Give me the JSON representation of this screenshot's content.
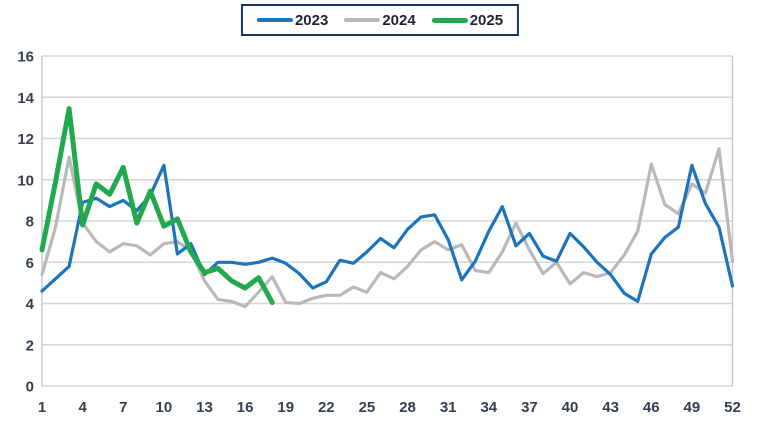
{
  "chart": {
    "legend_items": [
      {
        "label": "2023"
      },
      {
        "label": "2024"
      },
      {
        "label": "2025"
      }
    ]
  },
  "chart_data": {
    "type": "line",
    "title": "",
    "xlabel": "",
    "ylabel": "",
    "x_unit": "week",
    "x_range": [
      1,
      52
    ],
    "ylim": [
      0,
      16
    ],
    "y_ticks": [
      0,
      2,
      4,
      6,
      8,
      10,
      12,
      14,
      16
    ],
    "x_ticks": [
      1,
      4,
      7,
      10,
      13,
      16,
      19,
      22,
      25,
      28,
      31,
      34,
      37,
      40,
      43,
      46,
      49,
      52
    ],
    "grid": "horizontal",
    "legend_position": "top-center",
    "colors": {
      "grid": "#d6d6d6",
      "plot_border": "#c7c7c7",
      "tick_text": "#33404f",
      "legend_border": "#17365d"
    },
    "series": [
      {
        "name": "2023",
        "color": "#1b74bc",
        "line_width": 3.2,
        "start_week": 1,
        "values": [
          4.6,
          5.2,
          5.8,
          8.9,
          9.1,
          8.7,
          9.0,
          8.5,
          9.25,
          10.7,
          6.4,
          6.9,
          5.4,
          6.0,
          6.0,
          5.9,
          6.0,
          6.2,
          5.95,
          5.45,
          4.75,
          5.05,
          6.1,
          5.95,
          6.5,
          7.15,
          6.7,
          7.6,
          8.2,
          8.3,
          7.1,
          5.15,
          6.05,
          7.5,
          8.7,
          6.8,
          7.4,
          6.3,
          6.05,
          7.4,
          6.75,
          6.0,
          5.4,
          4.5,
          4.1,
          6.4,
          7.2,
          7.7,
          10.7,
          8.85,
          7.7,
          4.85
        ]
      },
      {
        "name": "2024",
        "color": "#b9b9b9",
        "line_width": 3.2,
        "start_week": 1,
        "values": [
          5.4,
          7.7,
          11.1,
          7.9,
          7.0,
          6.5,
          6.9,
          6.8,
          6.35,
          6.9,
          7.0,
          6.55,
          5.1,
          4.2,
          4.1,
          3.85,
          4.55,
          5.3,
          4.05,
          4.0,
          4.25,
          4.4,
          4.4,
          4.8,
          4.55,
          5.5,
          5.2,
          5.8,
          6.6,
          7.0,
          6.6,
          6.85,
          5.6,
          5.5,
          6.5,
          7.9,
          6.6,
          5.45,
          6.0,
          4.95,
          5.5,
          5.3,
          5.5,
          6.35,
          7.5,
          10.75,
          8.8,
          8.35,
          9.8,
          9.35,
          11.5,
          6.05
        ]
      },
      {
        "name": "2025",
        "color": "#22a84e",
        "line_width": 5,
        "start_week": 1,
        "values": [
          6.6,
          9.9,
          13.45,
          7.8,
          9.8,
          9.3,
          10.6,
          7.9,
          9.45,
          7.75,
          8.1,
          6.5,
          5.5,
          5.7,
          5.1,
          4.75,
          5.25,
          4.05
        ]
      }
    ]
  }
}
